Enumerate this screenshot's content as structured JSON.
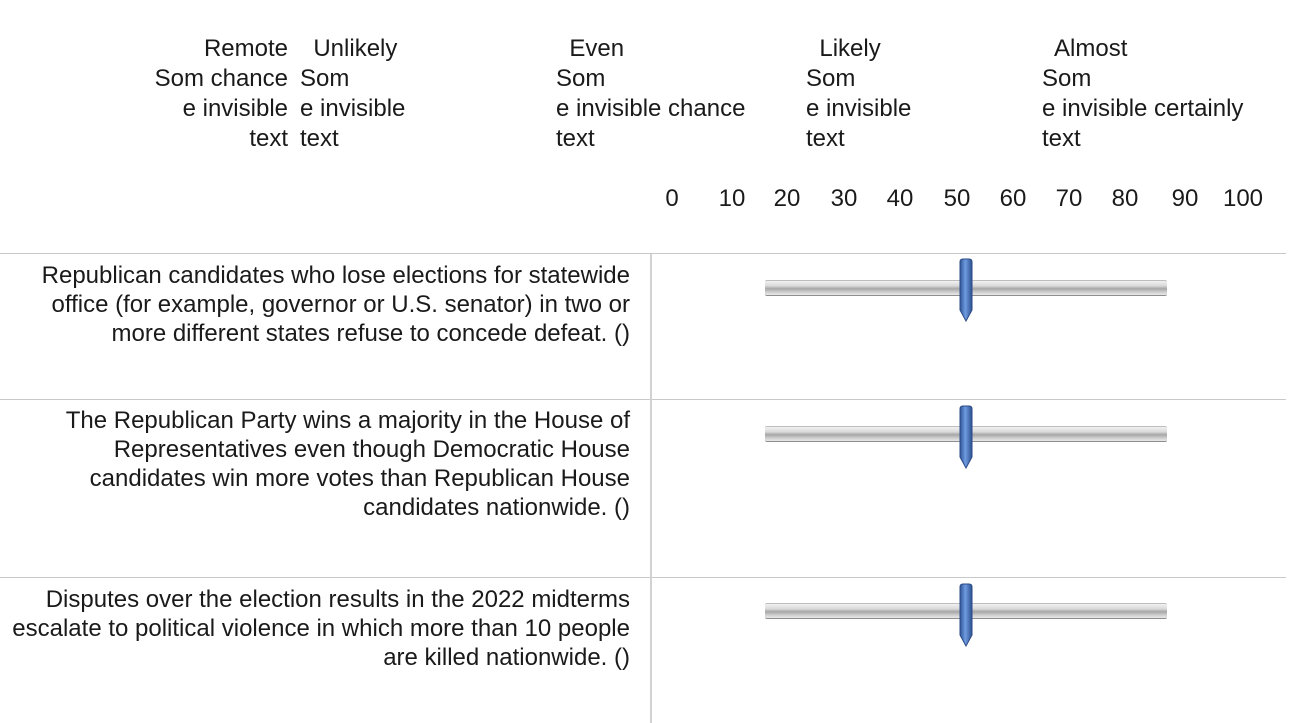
{
  "header": {
    "labels": [
      {
        "name": "remote",
        "text": "Remote\nSom chance\ne invisible\ntext"
      },
      {
        "name": "unlikely",
        "text": "Unlikely\nSom\ne invisible\ntext"
      },
      {
        "name": "even",
        "text": "Even\nSom\ne invisible chance\ntext"
      },
      {
        "name": "likely",
        "text": "Likely\nSom\ne invisible\ntext"
      },
      {
        "name": "almost",
        "text": "Almost\nSom\ne invisible certainly\ntext"
      }
    ]
  },
  "scale": {
    "ticks": [
      "0",
      "10",
      "20",
      "30",
      "40",
      "50",
      "60",
      "70",
      "80",
      "90",
      "100"
    ]
  },
  "questions": [
    {
      "text": "Republican candidates who lose elections for statewide office (for example, governor or U.S. senator) in two or more different states refuse to concede defeat. ()",
      "value": 50
    },
    {
      "text": "The Republican Party wins a majority in the House of Representatives even though Democratic House candidates win more votes than Republican House candidates nationwide. ()",
      "value": 50
    },
    {
      "text": "Disputes over the election results in the 2022 midterms escalate to political violence in which more than 10 people are killed nationwide. ()",
      "value": 50
    }
  ],
  "colors": {
    "handle": "#4472c4",
    "divider": "#c8c8c8"
  }
}
